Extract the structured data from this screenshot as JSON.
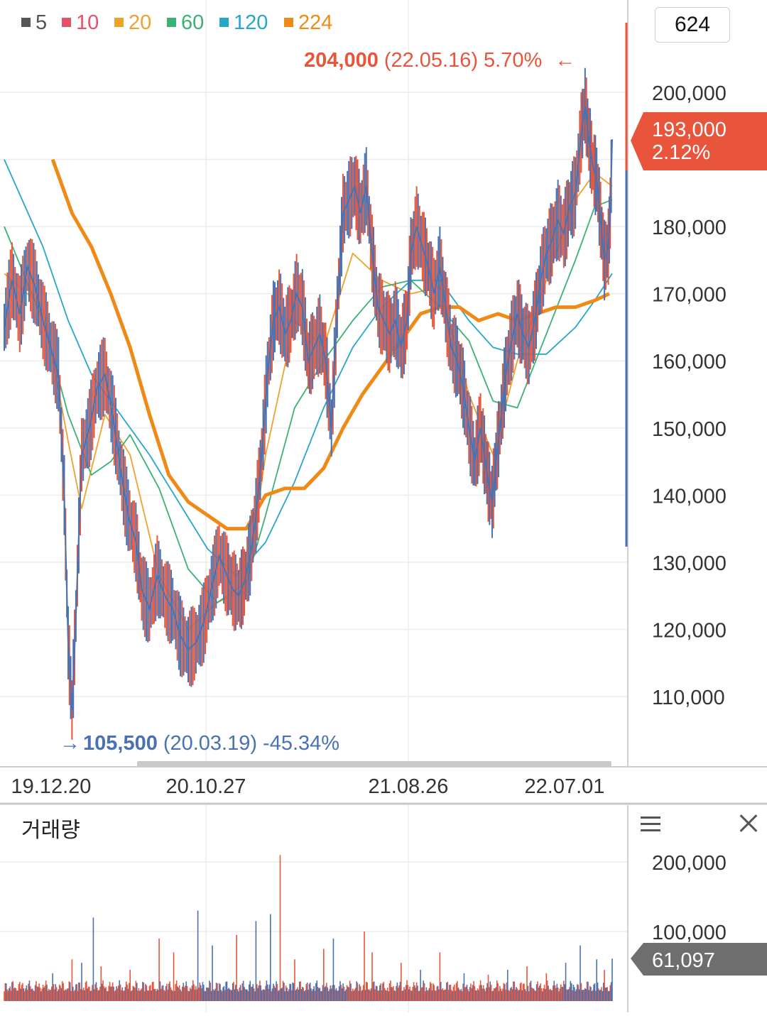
{
  "legend": [
    {
      "label": "5",
      "color": "#555555"
    },
    {
      "label": "10",
      "color": "#e8506a"
    },
    {
      "label": "20",
      "color": "#f0a12c"
    },
    {
      "label": "60",
      "color": "#3bb273"
    },
    {
      "label": "120",
      "color": "#26a6c9"
    },
    {
      "label": "224",
      "color": "#ef8a17"
    }
  ],
  "period": "624",
  "high_marker": {
    "price": "204,000",
    "date": "(22.05.16)",
    "pct": "5.70%",
    "arrow": "←"
  },
  "low_marker": {
    "arrow": "→",
    "price": "105,500",
    "date": "(20.03.19)",
    "pct": "-45.34%"
  },
  "current_price": {
    "price": "193,000",
    "pct": "2.12%"
  },
  "volume_panel": {
    "title": "거래량",
    "current": "61,097",
    "menu_icon": "hamburger-icon",
    "close_icon": "close-icon"
  },
  "colors": {
    "up": "#e8553a",
    "down": "#4a72b0",
    "grid": "#ececec"
  },
  "chart_data": [
    {
      "type": "line",
      "yticks": [
        "200,000",
        "180,000",
        "170,000",
        "160,000",
        "150,000",
        "140,000",
        "130,000",
        "120,000",
        "110,000"
      ],
      "ylim": [
        100000,
        210000
      ],
      "xtick_labels": [
        "19.12.20",
        "20.10.27",
        "21.08.26",
        "22.07.01"
      ],
      "x_index_range": [
        0,
        624
      ],
      "xtick_index": [
        0,
        220,
        440,
        606
      ],
      "price_series": [
        [
          0,
          165000
        ],
        [
          8,
          172000
        ],
        [
          16,
          167000
        ],
        [
          24,
          174000
        ],
        [
          32,
          171000
        ],
        [
          40,
          166000
        ],
        [
          48,
          162000
        ],
        [
          56,
          158000
        ],
        [
          62,
          140000
        ],
        [
          66,
          118000
        ],
        [
          70,
          108000
        ],
        [
          74,
          122000
        ],
        [
          80,
          146000
        ],
        [
          88,
          150000
        ],
        [
          96,
          156000
        ],
        [
          104,
          158000
        ],
        [
          112,
          152000
        ],
        [
          120,
          144000
        ],
        [
          128,
          137000
        ],
        [
          136,
          133000
        ],
        [
          142,
          126000
        ],
        [
          150,
          123000
        ],
        [
          158,
          128000
        ],
        [
          166,
          125000
        ],
        [
          174,
          123000
        ],
        [
          182,
          119000
        ],
        [
          190,
          117000
        ],
        [
          198,
          118000
        ],
        [
          206,
          121000
        ],
        [
          214,
          126000
        ],
        [
          222,
          131000
        ],
        [
          230,
          128000
        ],
        [
          236,
          126000
        ],
        [
          242,
          125000
        ],
        [
          248,
          127000
        ],
        [
          254,
          131000
        ],
        [
          260,
          137000
        ],
        [
          266,
          146000
        ],
        [
          272,
          158000
        ],
        [
          278,
          166000
        ],
        [
          284,
          168000
        ],
        [
          290,
          164000
        ],
        [
          296,
          166000
        ],
        [
          302,
          170000
        ],
        [
          308,
          168000
        ],
        [
          314,
          160000
        ],
        [
          320,
          162000
        ],
        [
          326,
          164000
        ],
        [
          332,
          160000
        ],
        [
          338,
          150000
        ],
        [
          344,
          168000
        ],
        [
          350,
          182000
        ],
        [
          356,
          184000
        ],
        [
          362,
          186000
        ],
        [
          368,
          182000
        ],
        [
          374,
          186000
        ],
        [
          380,
          176000
        ],
        [
          386,
          168000
        ],
        [
          392,
          166000
        ],
        [
          398,
          164000
        ],
        [
          404,
          166000
        ],
        [
          410,
          162000
        ],
        [
          416,
          166000
        ],
        [
          420,
          176000
        ],
        [
          426,
          180000
        ],
        [
          432,
          177000
        ],
        [
          438,
          174000
        ],
        [
          444,
          170000
        ],
        [
          450,
          174000
        ],
        [
          456,
          168000
        ],
        [
          462,
          162000
        ],
        [
          468,
          160000
        ],
        [
          474,
          156000
        ],
        [
          480,
          150000
        ],
        [
          486,
          145000
        ],
        [
          492,
          150000
        ],
        [
          496,
          146000
        ],
        [
          500,
          142000
        ],
        [
          504,
          139000
        ],
        [
          508,
          145000
        ],
        [
          512,
          150000
        ],
        [
          518,
          158000
        ],
        [
          524,
          163000
        ],
        [
          530,
          167000
        ],
        [
          536,
          164000
        ],
        [
          542,
          162000
        ],
        [
          548,
          166000
        ],
        [
          554,
          172000
        ],
        [
          560,
          176000
        ],
        [
          566,
          178000
        ],
        [
          572,
          181000
        ],
        [
          578,
          179000
        ],
        [
          584,
          183000
        ],
        [
          590,
          185000
        ],
        [
          596,
          194000
        ],
        [
          600,
          198000
        ],
        [
          604,
          193000
        ],
        [
          608,
          189000
        ],
        [
          612,
          187000
        ],
        [
          616,
          181000
        ],
        [
          620,
          175000
        ],
        [
          624,
          177000
        ],
        [
          626,
          182000
        ],
        [
          628,
          193000
        ]
      ],
      "ma": [
        {
          "name": "20",
          "color": "#f0a12c",
          "points": [
            [
              0,
              173000
            ],
            [
              40,
              168000
            ],
            [
              66,
              148000
            ],
            [
              80,
              138000
            ],
            [
              104,
              152000
            ],
            [
              130,
              146000
            ],
            [
              160,
              128000
            ],
            [
              190,
              120000
            ],
            [
              220,
              124000
            ],
            [
              250,
              126000
            ],
            [
              270,
              146000
            ],
            [
              300,
              166000
            ],
            [
              330,
              162000
            ],
            [
              360,
              176000
            ],
            [
              390,
              172000
            ],
            [
              420,
              170000
            ],
            [
              450,
              171000
            ],
            [
              480,
              155000
            ],
            [
              505,
              146000
            ],
            [
              530,
              160000
            ],
            [
              560,
              172000
            ],
            [
              590,
              184000
            ],
            [
              610,
              188000
            ],
            [
              628,
              186000
            ]
          ]
        },
        {
          "name": "60",
          "color": "#3bb273",
          "points": [
            [
              0,
              180000
            ],
            [
              40,
              166000
            ],
            [
              66,
              152000
            ],
            [
              90,
              143000
            ],
            [
              110,
              145000
            ],
            [
              130,
              149000
            ],
            [
              160,
              141000
            ],
            [
              190,
              129000
            ],
            [
              220,
              124000
            ],
            [
              250,
              127000
            ],
            [
              270,
              137000
            ],
            [
              300,
              153000
            ],
            [
              330,
              160000
            ],
            [
              360,
              166000
            ],
            [
              390,
              171000
            ],
            [
              420,
              172000
            ],
            [
              450,
              168000
            ],
            [
              480,
              163000
            ],
            [
              505,
              154000
            ],
            [
              530,
              153000
            ],
            [
              560,
              164000
            ],
            [
              590,
              175000
            ],
            [
              610,
              183000
            ],
            [
              628,
              184000
            ]
          ]
        },
        {
          "name": "120",
          "color": "#26a6c9",
          "points": [
            [
              0,
              190000
            ],
            [
              40,
              177000
            ],
            [
              66,
              166000
            ],
            [
              90,
              158000
            ],
            [
              120,
              152000
            ],
            [
              150,
              146000
            ],
            [
              180,
              139000
            ],
            [
              210,
              132000
            ],
            [
              240,
              128000
            ],
            [
              270,
              133000
            ],
            [
              300,
              142000
            ],
            [
              330,
              153000
            ],
            [
              360,
              162000
            ],
            [
              390,
              168000
            ],
            [
              420,
              172000
            ],
            [
              450,
              172000
            ],
            [
              480,
              166000
            ],
            [
              505,
              162000
            ],
            [
              530,
              161000
            ],
            [
              560,
              161000
            ],
            [
              590,
              165000
            ],
            [
              610,
              169000
            ],
            [
              628,
              173000
            ]
          ]
        },
        {
          "name": "224",
          "color": "#ef8a17",
          "points": [
            [
              50,
              190000
            ],
            [
              70,
              182000
            ],
            [
              90,
              177000
            ],
            [
              110,
              170000
            ],
            [
              130,
              162000
            ],
            [
              150,
              152000
            ],
            [
              170,
              143000
            ],
            [
              190,
              139000
            ],
            [
              210,
              137000
            ],
            [
              230,
              135000
            ],
            [
              250,
              135000
            ],
            [
              270,
              140000
            ],
            [
              290,
              141000
            ],
            [
              310,
              141000
            ],
            [
              330,
              144000
            ],
            [
              350,
              150000
            ],
            [
              370,
              155000
            ],
            [
              390,
              159000
            ],
            [
              410,
              163000
            ],
            [
              430,
              167000
            ],
            [
              450,
              168000
            ],
            [
              470,
              168000
            ],
            [
              490,
              166000
            ],
            [
              510,
              167000
            ],
            [
              530,
              166000
            ],
            [
              550,
              167000
            ],
            [
              570,
              168000
            ],
            [
              590,
              168000
            ],
            [
              610,
              169000
            ],
            [
              625,
              170000
            ]
          ]
        }
      ]
    },
    {
      "type": "bar",
      "title": "거래량",
      "yticks": [
        "200,000",
        "100,000"
      ],
      "ylim": [
        0,
        215000
      ],
      "spikes": [
        [
          50,
          40000
        ],
        [
          70,
          60000
        ],
        [
          80,
          55000
        ],
        [
          92,
          120000
        ],
        [
          100,
          50000
        ],
        [
          130,
          45000
        ],
        [
          160,
          90000
        ],
        [
          175,
          70000
        ],
        [
          200,
          130000
        ],
        [
          215,
          80000
        ],
        [
          240,
          95000
        ],
        [
          260,
          115000
        ],
        [
          275,
          125000
        ],
        [
          285,
          210000
        ],
        [
          300,
          60000
        ],
        [
          330,
          75000
        ],
        [
          340,
          90000
        ],
        [
          372,
          100000
        ],
        [
          380,
          70000
        ],
        [
          410,
          55000
        ],
        [
          430,
          45000
        ],
        [
          450,
          70000
        ],
        [
          475,
          40000
        ],
        [
          500,
          38000
        ],
        [
          520,
          45000
        ],
        [
          540,
          50000
        ],
        [
          560,
          40000
        ],
        [
          580,
          55000
        ],
        [
          595,
          80000
        ],
        [
          612,
          60000
        ],
        [
          620,
          45000
        ],
        [
          628,
          61097
        ]
      ]
    }
  ]
}
